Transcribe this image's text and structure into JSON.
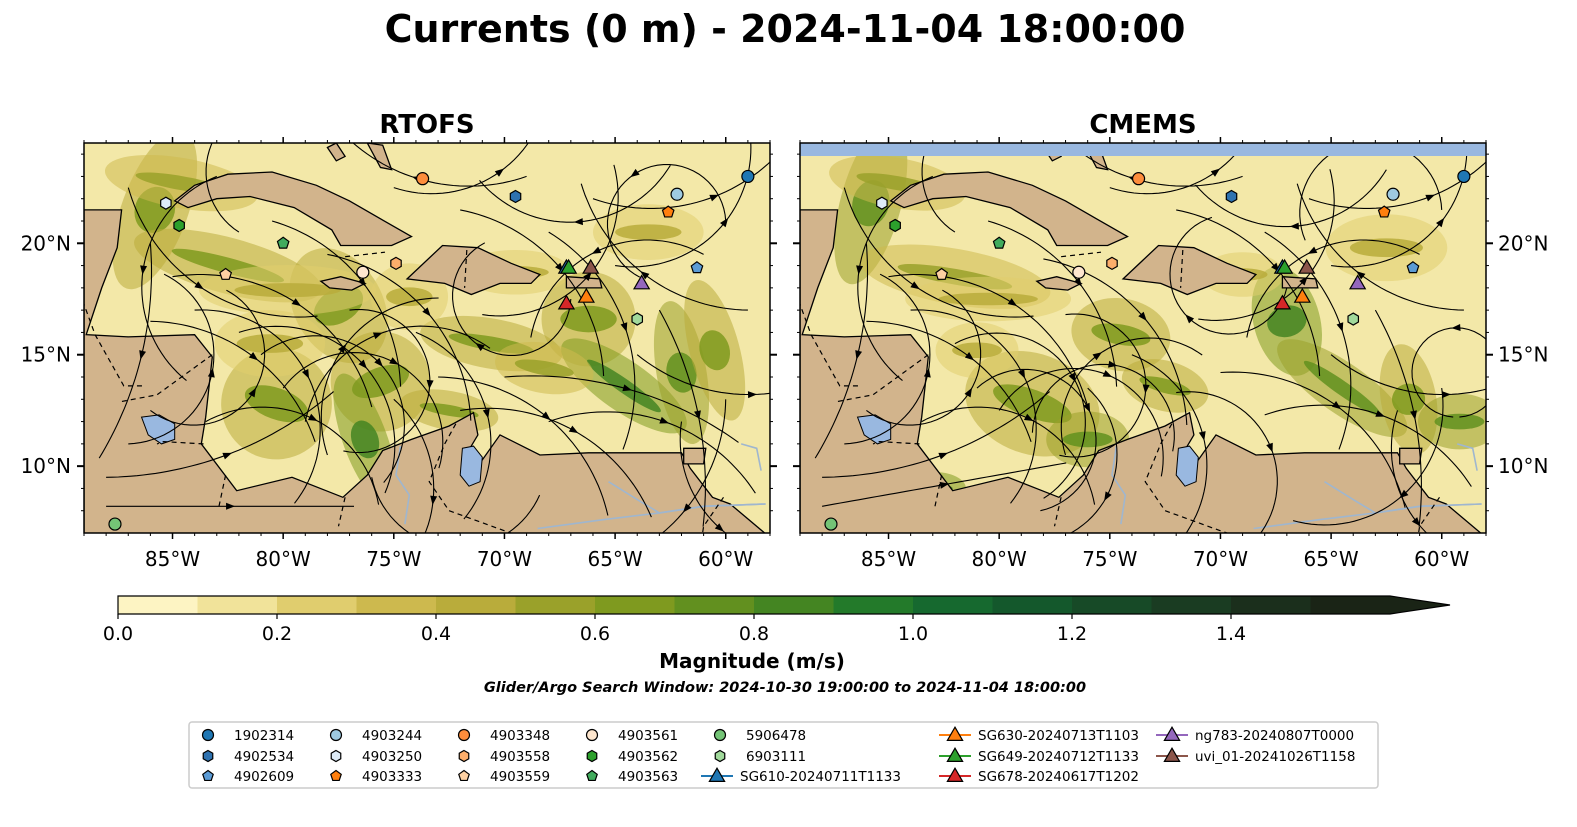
{
  "figure": {
    "title": "Currents (0 m) - 2024-11-04 18:00:00",
    "search_window": "Glider/Argo Search Window: 2024-10-30 19:00:00 to 2024-11-04 18:00:00"
  },
  "panels": [
    {
      "title": "RTOFS",
      "land_mask_top": false
    },
    {
      "title": "CMEMS",
      "land_mask_top": true
    }
  ],
  "axes": {
    "lon_ticks": [
      {
        "value": -85,
        "label": "85°W"
      },
      {
        "value": -80,
        "label": "80°W"
      },
      {
        "value": -75,
        "label": "75°W"
      },
      {
        "value": -70,
        "label": "70°W"
      },
      {
        "value": -65,
        "label": "65°W"
      },
      {
        "value": -60,
        "label": "60°W"
      }
    ],
    "lat_ticks": [
      {
        "value": 20,
        "label": "20°N"
      },
      {
        "value": 15,
        "label": "15°N"
      },
      {
        "value": 10,
        "label": "10°N"
      }
    ],
    "lon_range": [
      -89,
      -58
    ],
    "lat_range": [
      7,
      24.5
    ]
  },
  "colorbar": {
    "label": "Magnitude (m/s)",
    "range": [
      0,
      1.6
    ],
    "extend": "max",
    "ticks": [
      {
        "value": 0.0,
        "label": "0.0"
      },
      {
        "value": 0.2,
        "label": "0.2"
      },
      {
        "value": 0.4,
        "label": "0.4"
      },
      {
        "value": 0.6,
        "label": "0.6"
      },
      {
        "value": 0.8,
        "label": "0.8"
      },
      {
        "value": 1.0,
        "label": "1.0"
      },
      {
        "value": 1.2,
        "label": "1.2"
      },
      {
        "value": 1.4,
        "label": "1.4"
      }
    ],
    "colors": [
      "#fdf4c3",
      "#f1e39a",
      "#e0cd6e",
      "#cdb94e",
      "#b9ac3b",
      "#9aa12a",
      "#7f9a1f",
      "#62901f",
      "#448522",
      "#237a2a",
      "#16692f",
      "#14582c",
      "#174a27",
      "#1a3c22",
      "#1b2f1c",
      "#1a2416"
    ]
  },
  "colors": {
    "ocean": "#f3e8a8",
    "land": "#d2b48c",
    "water_body": "#99b8e0",
    "river": "#9fb6cf"
  },
  "legend": [
    {
      "label": "1902314",
      "marker": "circle",
      "color": "#1f77b4",
      "lon": -59.0,
      "lat": 23.0
    },
    {
      "label": "4902534",
      "marker": "hexagon",
      "color": "#2e72b0",
      "lon": -69.5,
      "lat": 22.1
    },
    {
      "label": "4902609",
      "marker": "pentagon",
      "color": "#5b9bd5",
      "lon": -61.3,
      "lat": 18.9
    },
    {
      "label": "4903244",
      "marker": "circle",
      "color": "#9ecae1",
      "lon": -62.2,
      "lat": 22.2
    },
    {
      "label": "4903250",
      "marker": "hexagon",
      "color": "#deebf7",
      "lon": -85.3,
      "lat": 21.8
    },
    {
      "label": "4903333",
      "marker": "pentagon",
      "color": "#ff7f0e",
      "lon": -62.6,
      "lat": 21.4
    },
    {
      "label": "4903348",
      "marker": "circle",
      "color": "#fd8d3c",
      "lon": -73.7,
      "lat": 22.9
    },
    {
      "label": "4903558",
      "marker": "hexagon",
      "color": "#fdae6b",
      "lon": -74.9,
      "lat": 19.1
    },
    {
      "label": "4903559",
      "marker": "pentagon",
      "color": "#fdd0a2",
      "lon": -82.6,
      "lat": 18.6
    },
    {
      "label": "4903561",
      "marker": "circle",
      "color": "#fee6ce",
      "lon": -76.4,
      "lat": 18.7
    },
    {
      "label": "4903562",
      "marker": "hexagon",
      "color": "#2ca02c",
      "lon": -84.7,
      "lat": 20.8
    },
    {
      "label": "4903563",
      "marker": "pentagon",
      "color": "#41ab5d",
      "lon": -80.0,
      "lat": 20.0
    },
    {
      "label": "5906478",
      "marker": "circle",
      "color": "#74c476",
      "lon": -87.6,
      "lat": 7.4
    },
    {
      "label": "6903111",
      "marker": "hexagon",
      "color": "#a1d99b",
      "lon": -64.0,
      "lat": 16.6
    },
    {
      "label": "SG610-20240711T1133",
      "marker": "triangle",
      "color": "#1f77b4",
      "line": true,
      "lon": -67.2,
      "lat": 18.9
    },
    {
      "label": "SG630-20240713T1103",
      "marker": "triangle",
      "color": "#ff7f0e",
      "line": true,
      "lon": -66.3,
      "lat": 17.6
    },
    {
      "label": "SG649-20240712T1133",
      "marker": "triangle",
      "color": "#2ca02c",
      "line": true,
      "lon": -67.1,
      "lat": 18.9
    },
    {
      "label": "SG678-20240617T1202",
      "marker": "triangle",
      "color": "#d62728",
      "line": true,
      "lon": -67.2,
      "lat": 17.3
    },
    {
      "label": "ng783-20240807T0000",
      "marker": "triangle",
      "color": "#9467bd",
      "line": true,
      "lon": -63.8,
      "lat": 18.2
    },
    {
      "label": "uvi_01-20241026T1158",
      "marker": "triangle",
      "color": "#8c564b",
      "line": true,
      "lon": -66.1,
      "lat": 18.9
    }
  ]
}
